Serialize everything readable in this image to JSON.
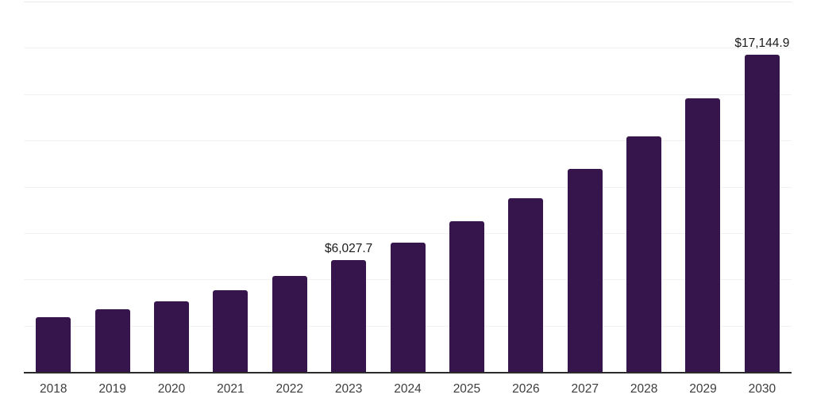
{
  "chart_data": {
    "type": "bar",
    "title": "",
    "xlabel": "",
    "ylabel": "",
    "categories": [
      "2018",
      "2019",
      "2020",
      "2021",
      "2022",
      "2023",
      "2024",
      "2025",
      "2026",
      "2027",
      "2028",
      "2029",
      "2030"
    ],
    "values": [
      2950,
      3390,
      3820,
      4430,
      5170,
      6027.7,
      7000,
      8120,
      9380,
      10950,
      12720,
      14770,
      17144.9
    ],
    "point_labels": [
      {
        "index": 5,
        "category": "2023",
        "text": "$6,027.7"
      },
      {
        "index": 12,
        "category": "2030",
        "text": "$17,144.9"
      }
    ],
    "ylim": [
      0,
      20000
    ],
    "gridline_interval": 2500,
    "grid": true,
    "legend": "none",
    "background": "#ffffff",
    "colors": {
      "bar": "#35154C",
      "axis_line": "#2b2b2b",
      "grid": "#f2f2f2",
      "grid_top": "#e8e8e8",
      "value_label": "#1a1a1a",
      "tick_label": "#3d3d3d"
    }
  }
}
